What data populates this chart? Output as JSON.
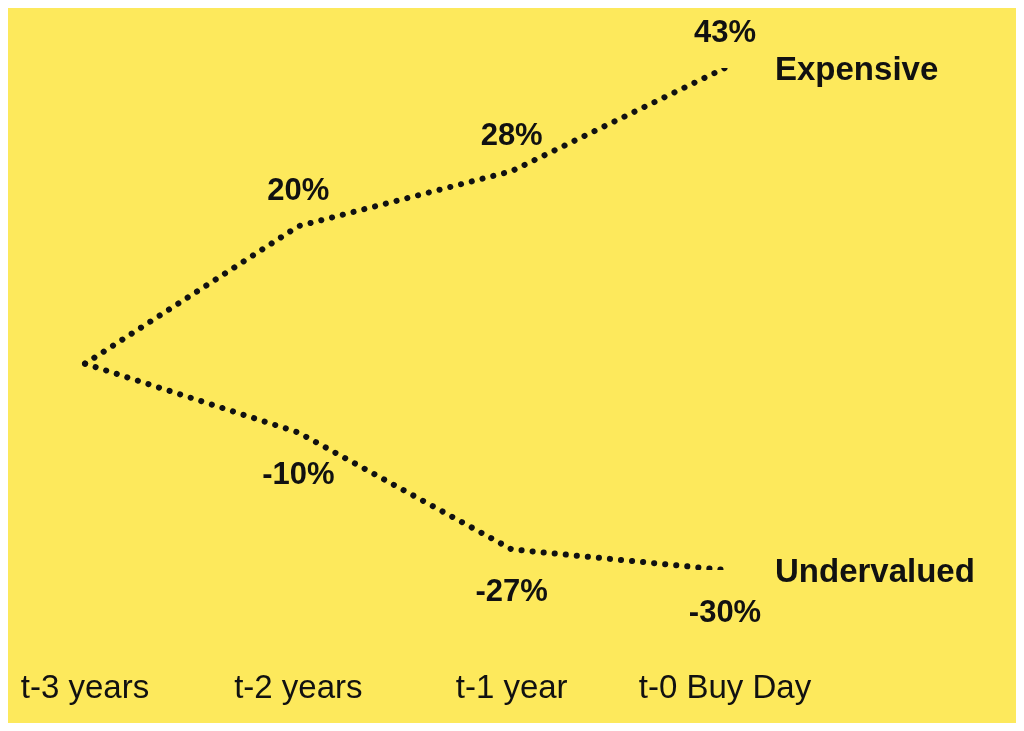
{
  "chart_data": {
    "type": "line",
    "categories": [
      "t-3 years",
      "t-2 years",
      "t-1 year",
      "t-0 Buy Day"
    ],
    "series": [
      {
        "name": "Expensive",
        "color": "#111111",
        "values": [
          0,
          20,
          28,
          43
        ],
        "value_labels": [
          null,
          "20%",
          "28%",
          "43%"
        ]
      },
      {
        "name": "Undervalued",
        "color": "#111111",
        "values": [
          0,
          -10,
          -27,
          -30
        ],
        "value_labels": [
          null,
          "-10%",
          "-27%",
          "-30%"
        ]
      }
    ],
    "line_style": "dotted",
    "marker": "none"
  }
}
